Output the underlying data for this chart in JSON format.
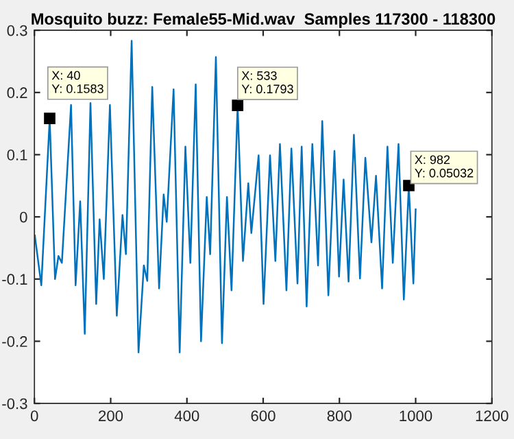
{
  "chart_data": {
    "type": "line",
    "title": "Mosquito buzz: Female55-Mid.wav  Samples 117300 - 118300",
    "series": [
      {
        "color": "#0072bd",
        "x": [
          1,
          18,
          40,
          54,
          63,
          72,
          96,
          108,
          120,
          132,
          147,
          162,
          171,
          182,
          198,
          216,
          231,
          240,
          255,
          273,
          287,
          296,
          309,
          327,
          339,
          347,
          365,
          381,
          396,
          409,
          423,
          437,
          452,
          461,
          476,
          492,
          505,
          517,
          533,
          547,
          561,
          569,
          588,
          601,
          618,
          632,
          644,
          661,
          674,
          690,
          701,
          714,
          729,
          744,
          755,
          771,
          787,
          799,
          811,
          824,
          838,
          854,
          868,
          884,
          896,
          912,
          926,
          940,
          955,
          969,
          982,
          994,
          1000
        ],
        "values": [
          -0.03,
          -0.11,
          0.158,
          -0.1,
          -0.063,
          -0.074,
          0.18,
          -0.11,
          0.025,
          -0.188,
          0.183,
          -0.14,
          -0.004,
          -0.1,
          0.18,
          -0.159,
          0.003,
          -0.06,
          0.283,
          -0.218,
          -0.078,
          -0.103,
          0.209,
          -0.115,
          0.036,
          -0.008,
          0.205,
          -0.218,
          0.113,
          -0.074,
          0.213,
          -0.2,
          0.032,
          -0.06,
          0.257,
          -0.203,
          0.032,
          -0.118,
          0.179,
          -0.071,
          0.054,
          -0.026,
          0.099,
          -0.14,
          0.099,
          -0.071,
          0.117,
          -0.118,
          0.11,
          -0.107,
          0.113,
          -0.144,
          0.117,
          -0.078,
          0.154,
          -0.126,
          0.106,
          -0.096,
          0.06,
          -0.104,
          0.132,
          -0.099,
          0.095,
          -0.041,
          0.066,
          -0.115,
          0.113,
          -0.074,
          0.117,
          -0.133,
          0.05,
          -0.107,
          0.012
        ]
      }
    ],
    "annotations": [
      {
        "text": "X: 40\nY: 0.1583",
        "x": 40,
        "y": 0.1583
      },
      {
        "text": "X: 533\nY: 0.1793",
        "x": 533,
        "y": 0.1793
      },
      {
        "text": "X: 982\nY: 0.05032",
        "x": 982,
        "y": 0.05032
      }
    ],
    "xlim": [
      0,
      1200
    ],
    "xticks": [
      0,
      200,
      400,
      600,
      800,
      1000,
      1200
    ],
    "ylim": [
      -0.3,
      0.3
    ],
    "yticks": [
      -0.3,
      -0.2,
      -0.1,
      0,
      0.1,
      0.2,
      0.3
    ],
    "grid": false,
    "legend": false
  }
}
